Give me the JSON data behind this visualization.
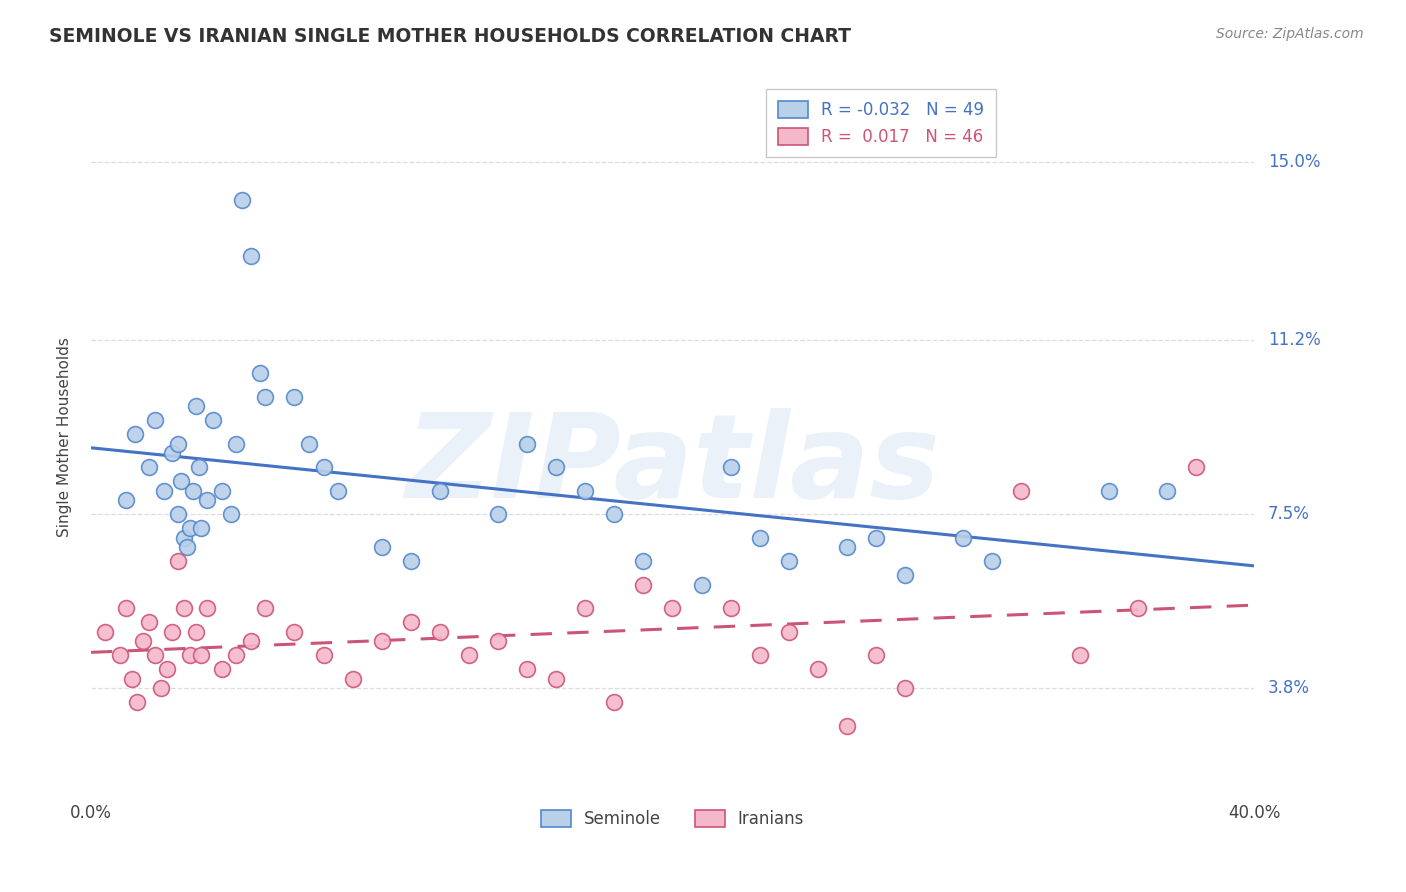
{
  "title": "SEMINOLE VS IRANIAN SINGLE MOTHER HOUSEHOLDS CORRELATION CHART",
  "source": "Source: ZipAtlas.com",
  "ylabel": "Single Mother Households",
  "xmin": 0.0,
  "xmax": 40.0,
  "ymin": 1.5,
  "ymax": 16.8,
  "ytick_vals": [
    3.8,
    7.5,
    11.2,
    15.0
  ],
  "ytick_labels": [
    "3.8%",
    "7.5%",
    "11.2%",
    "15.0%"
  ],
  "xtick_vals": [
    0.0,
    40.0
  ],
  "xtick_labels": [
    "0.0%",
    "40.0%"
  ],
  "seminole_color_face": "#b8d0e8",
  "seminole_color_edge": "#5588cc",
  "iranians_color_face": "#f5b8ca",
  "iranians_color_edge": "#cc5577",
  "seminole_trend_color": "#4472c4",
  "iranians_trend_color": "#cc5577",
  "legend1_line1": "R = -0.032   N = 49",
  "legend1_line2": "R =  0.017   N = 46",
  "legend2_sem": "Seminole",
  "legend2_iran": "Iranians",
  "watermark": "ZIPatlas",
  "grid_color": "#dddddd",
  "background": "#ffffff",
  "seminole_x": [
    1.2,
    1.5,
    2.0,
    2.2,
    2.5,
    2.8,
    3.0,
    3.0,
    3.1,
    3.2,
    3.3,
    3.4,
    3.5,
    3.6,
    3.7,
    3.8,
    4.0,
    4.2,
    4.5,
    4.8,
    5.0,
    5.2,
    5.5,
    5.8,
    6.0,
    7.0,
    7.5,
    8.0,
    8.5,
    10.0,
    11.0,
    12.0,
    14.0,
    15.0,
    16.0,
    17.0,
    18.0,
    19.0,
    21.0,
    22.0,
    23.0,
    24.0,
    26.0,
    27.0,
    28.0,
    30.0,
    31.0,
    35.0,
    37.0
  ],
  "seminole_y": [
    7.8,
    9.2,
    8.5,
    9.5,
    8.0,
    8.8,
    9.0,
    7.5,
    8.2,
    7.0,
    6.8,
    7.2,
    8.0,
    9.8,
    8.5,
    7.2,
    7.8,
    9.5,
    8.0,
    7.5,
    9.0,
    14.2,
    13.0,
    10.5,
    10.0,
    10.0,
    9.0,
    8.5,
    8.0,
    6.8,
    6.5,
    8.0,
    7.5,
    9.0,
    8.5,
    8.0,
    7.5,
    6.5,
    6.0,
    8.5,
    7.0,
    6.5,
    6.8,
    7.0,
    6.2,
    7.0,
    6.5,
    8.0,
    8.0
  ],
  "iranians_x": [
    0.5,
    1.0,
    1.2,
    1.4,
    1.6,
    1.8,
    2.0,
    2.2,
    2.4,
    2.6,
    2.8,
    3.0,
    3.2,
    3.4,
    3.6,
    3.8,
    4.0,
    4.5,
    5.0,
    5.5,
    6.0,
    7.0,
    8.0,
    9.0,
    10.0,
    11.0,
    12.0,
    13.0,
    14.0,
    15.0,
    16.0,
    17.0,
    18.0,
    19.0,
    20.0,
    22.0,
    23.0,
    24.0,
    25.0,
    26.0,
    27.0,
    28.0,
    32.0,
    34.0,
    36.0,
    38.0
  ],
  "iranians_y": [
    5.0,
    4.5,
    5.5,
    4.0,
    3.5,
    4.8,
    5.2,
    4.5,
    3.8,
    4.2,
    5.0,
    6.5,
    5.5,
    4.5,
    5.0,
    4.5,
    5.5,
    4.2,
    4.5,
    4.8,
    5.5,
    5.0,
    4.5,
    4.0,
    4.8,
    5.2,
    5.0,
    4.5,
    4.8,
    4.2,
    4.0,
    5.5,
    3.5,
    6.0,
    5.5,
    5.5,
    4.5,
    5.0,
    4.2,
    3.0,
    4.5,
    3.8,
    8.0,
    4.5,
    5.5,
    8.5
  ]
}
